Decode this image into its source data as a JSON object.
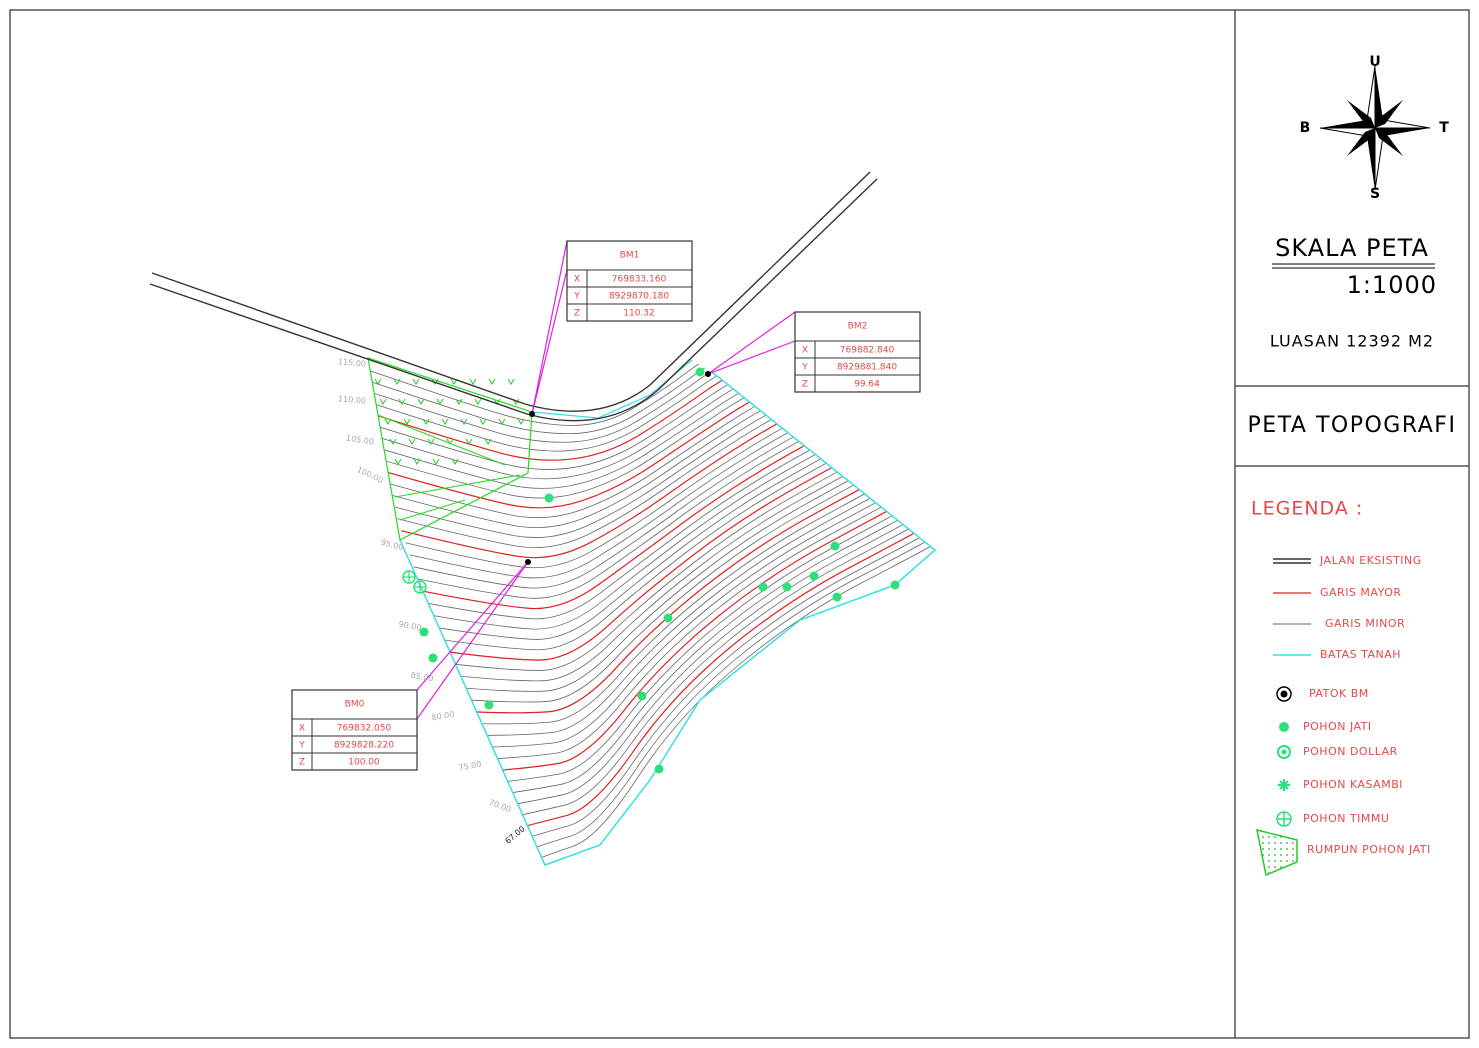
{
  "compass": {
    "north": "U",
    "west": "B",
    "east": "T",
    "south": "S"
  },
  "scale": {
    "title": "SKALA PETA",
    "ratio": "1:1000"
  },
  "area": "LUASAN 12392 M2",
  "map_title": "PETA TOPOGRAFI",
  "legend": {
    "title": "LEGENDA :",
    "items": [
      "JALAN EKSISTING",
      "GARIS MAYOR",
      "GARIS MINOR",
      "BATAS TANAH",
      "PATOK BM",
      "POHON JATI",
      "POHON DOLLAR",
      "POHON KASAMBI",
      "POHON TIMMU",
      "RUMPUN POHON JATI"
    ]
  },
  "benchmarks": [
    {
      "name": "BM1",
      "rows": [
        [
          "X",
          "769833.160"
        ],
        [
          "Y",
          "8929870.180"
        ],
        [
          "Z",
          "110.32"
        ]
      ]
    },
    {
      "name": "BM2",
      "rows": [
        [
          "X",
          "769882.840"
        ],
        [
          "Y",
          "8929881.840"
        ],
        [
          "Z",
          "99.64"
        ]
      ]
    },
    {
      "name": "BM0",
      "rows": [
        [
          "X",
          "769832.050"
        ],
        [
          "Y",
          "8929828.220"
        ],
        [
          "Z",
          "100.00"
        ]
      ]
    }
  ],
  "contour_labels": [
    "115.00",
    "110.00",
    "105.00",
    "100.00",
    "95.00",
    "90.00",
    "85.00",
    "80.00",
    "75.00",
    "70.00",
    "67.00"
  ]
}
